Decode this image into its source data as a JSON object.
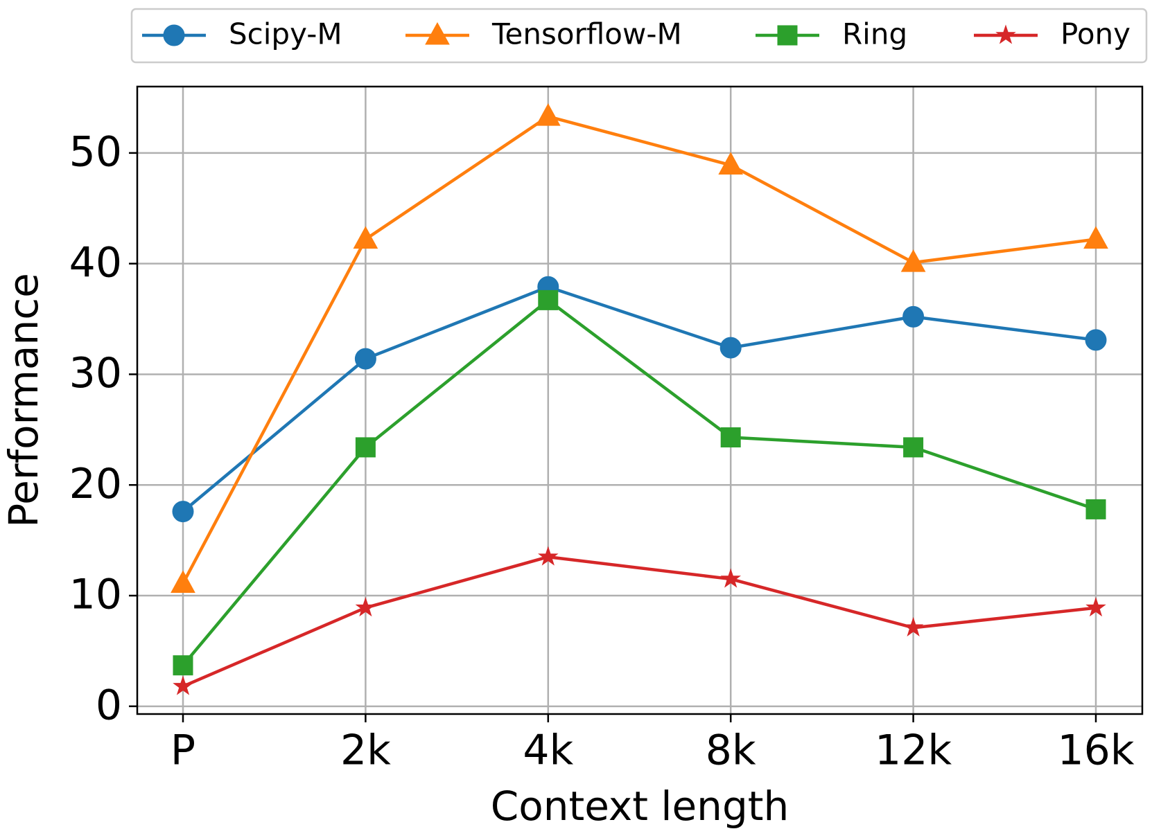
{
  "chart_data": {
    "type": "line",
    "x_label": "Context length",
    "y_label": "Performance",
    "categories": [
      "P",
      "2k",
      "4k",
      "8k",
      "12k",
      "16k"
    ],
    "series": [
      {
        "name": "Scipy-M",
        "color": "#1f77b4",
        "marker": "circle",
        "values": [
          17.6,
          31.4,
          37.9,
          32.4,
          35.2,
          33.1
        ]
      },
      {
        "name": "Tensorflow-M",
        "color": "#ff7f0e",
        "marker": "triangle",
        "values": [
          11.1,
          42.2,
          53.3,
          48.9,
          40.1,
          42.2
        ]
      },
      {
        "name": "Ring",
        "color": "#2ca02c",
        "marker": "square",
        "values": [
          3.7,
          23.4,
          36.7,
          24.3,
          23.4,
          17.8
        ]
      },
      {
        "name": "Pony",
        "color": "#d62728",
        "marker": "star",
        "values": [
          1.8,
          8.9,
          13.5,
          11.5,
          7.1,
          8.9
        ]
      }
    ],
    "ylim": [
      -0.7,
      56
    ],
    "yticks": [
      0,
      10,
      20,
      30,
      40,
      50
    ],
    "grid": true,
    "legend": "top"
  }
}
